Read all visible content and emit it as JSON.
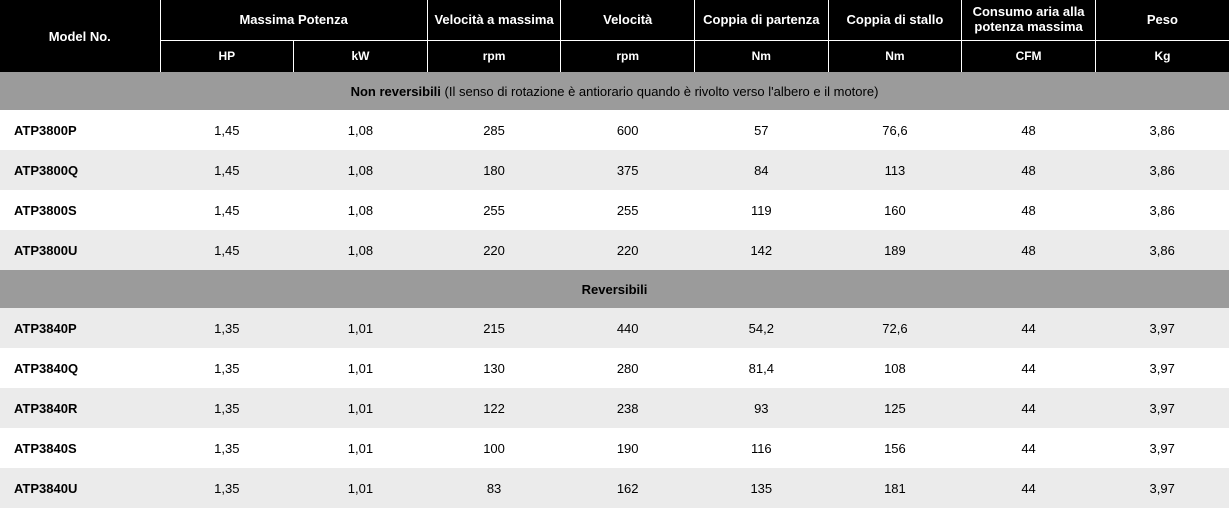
{
  "columns": {
    "model": {
      "title": "Model No.",
      "unit": ""
    },
    "power": {
      "title": "Massima Potenza",
      "unit_hp": "HP",
      "unit_kw": "kW"
    },
    "speed_max": {
      "title": "Velocità a massima",
      "unit": "rpm"
    },
    "speed": {
      "title": "Velocità",
      "unit": "rpm"
    },
    "start_torque": {
      "title": "Coppia di partenza",
      "unit": "Nm"
    },
    "stall_torque": {
      "title": "Coppia di stallo",
      "unit": "Nm"
    },
    "air": {
      "title": "Consumo aria alla potenza massima",
      "unit": "CFM"
    },
    "weight": {
      "title": "Peso",
      "unit": "Kg"
    }
  },
  "sections": [
    {
      "title": "Non reversibili",
      "note": "(Il senso di rotazione è antiorario quando è rivolto verso l'albero e il motore)",
      "rows": [
        {
          "model": "ATP3800P",
          "hp": "1,45",
          "kw": "1,08",
          "rpm_max": "285",
          "rpm": "600",
          "start_nm": "57",
          "stall_nm": "76,6",
          "cfm": "48",
          "kg": "3,86"
        },
        {
          "model": "ATP3800Q",
          "hp": "1,45",
          "kw": "1,08",
          "rpm_max": "180",
          "rpm": "375",
          "start_nm": "84",
          "stall_nm": "113",
          "cfm": "48",
          "kg": "3,86"
        },
        {
          "model": "ATP3800S",
          "hp": "1,45",
          "kw": "1,08",
          "rpm_max": "255",
          "rpm": "255",
          "start_nm": "119",
          "stall_nm": "160",
          "cfm": "48",
          "kg": "3,86"
        },
        {
          "model": "ATP3800U",
          "hp": "1,45",
          "kw": "1,08",
          "rpm_max": "220",
          "rpm": "220",
          "start_nm": "142",
          "stall_nm": "189",
          "cfm": "48",
          "kg": "3,86"
        }
      ]
    },
    {
      "title": "Reversibili",
      "note": "",
      "rows": [
        {
          "model": "ATP3840P",
          "hp": "1,35",
          "kw": "1,01",
          "rpm_max": "215",
          "rpm": "440",
          "start_nm": "54,2",
          "stall_nm": "72,6",
          "cfm": "44",
          "kg": "3,97"
        },
        {
          "model": "ATP3840Q",
          "hp": "1,35",
          "kw": "1,01",
          "rpm_max": "130",
          "rpm": "280",
          "start_nm": "81,4",
          "stall_nm": "108",
          "cfm": "44",
          "kg": "3,97"
        },
        {
          "model": "ATP3840R",
          "hp": "1,35",
          "kw": "1,01",
          "rpm_max": "122",
          "rpm": "238",
          "start_nm": "93",
          "stall_nm": "125",
          "cfm": "44",
          "kg": "3,97"
        },
        {
          "model": "ATP3840S",
          "hp": "1,35",
          "kw": "1,01",
          "rpm_max": "100",
          "rpm": "190",
          "start_nm": "116",
          "stall_nm": "156",
          "cfm": "44",
          "kg": "3,97"
        },
        {
          "model": "ATP3840U",
          "hp": "1,35",
          "kw": "1,01",
          "rpm_max": "83",
          "rpm": "162",
          "start_nm": "135",
          "stall_nm": "181",
          "cfm": "44",
          "kg": "3,97"
        }
      ]
    }
  ]
}
